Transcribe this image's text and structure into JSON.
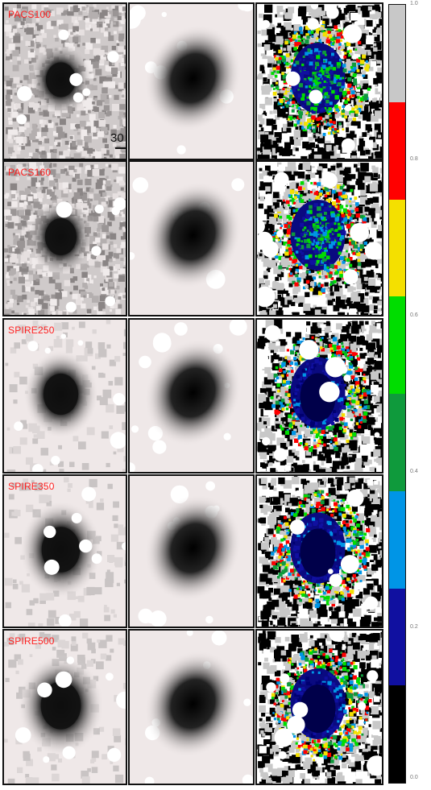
{
  "rows": [
    {
      "band": "PACS100",
      "model_blob": 0.55,
      "data_blob": 0.55
    },
    {
      "band": "PACS160",
      "model_blob": 0.6,
      "data_blob": 0.6
    },
    {
      "band": "SPIRE250",
      "model_blob": 0.75,
      "data_blob": 0.7
    },
    {
      "band": "SPIRE350",
      "model_blob": 0.85,
      "data_blob": 0.8
    },
    {
      "band": "SPIRE500",
      "model_blob": 0.9,
      "data_blob": 0.85
    }
  ],
  "scale_label": "30",
  "colorbar": {
    "colors": [
      "#c8c8c8",
      "#ff0000",
      "#f4e000",
      "#00dd00",
      "#0f9a3c",
      "#0095e6",
      "#1010a0",
      "#000000"
    ],
    "ticks": [
      "1.0",
      "0.8",
      "0.6",
      "0.4",
      "0.2",
      "0.0"
    ]
  }
}
